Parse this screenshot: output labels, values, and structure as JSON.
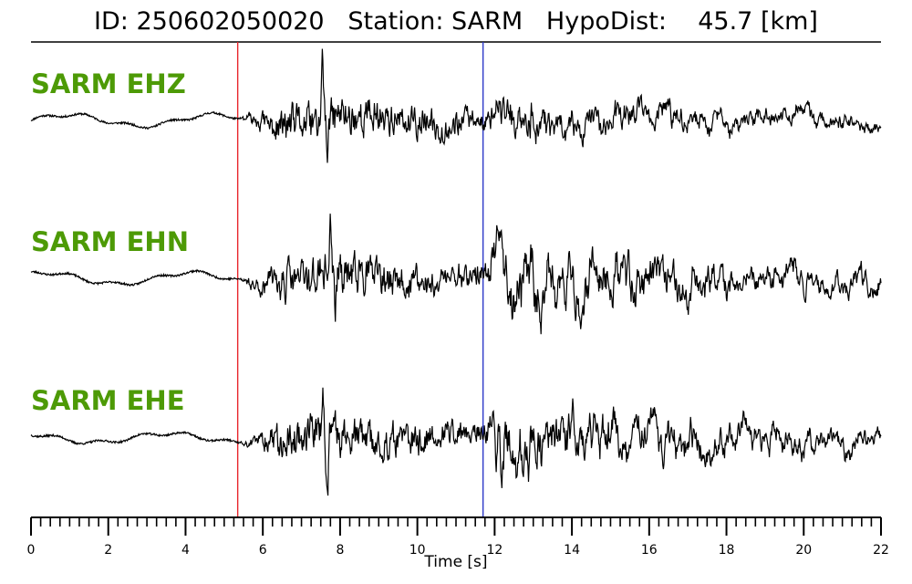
{
  "header": {
    "id_text": "ID: 250602050020   Station: SARM   HypoDist:    45.7 [km]"
  },
  "chart_data": {
    "type": "line",
    "title": "ID: 250602050020   Station: SARM   HypoDist:    45.7 [km]",
    "xlabel": "Time [s]",
    "xlim": [
      0,
      22
    ],
    "x_ticks": [
      0,
      2,
      4,
      6,
      8,
      10,
      12,
      14,
      16,
      18,
      20,
      22
    ],
    "minor_tick_step": 0.25,
    "grid": false,
    "markers": [
      {
        "time": 5.35,
        "color": "#e8262b"
      },
      {
        "time": 11.7,
        "color": "#2c38c8"
      }
    ],
    "trace_color": "#000000",
    "label_color": "#4d9a06",
    "series": [
      {
        "name": "SARM EHZ",
        "seed": 11,
        "noise_amp": 0.1,
        "low_amp": 0.15,
        "s_amp": 0.55,
        "peak_time": 7.55,
        "peak_up": 1.75,
        "peak_down": -0.9
      },
      {
        "name": "SARM EHN",
        "seed": 23,
        "noise_amp": 0.1,
        "low_amp": 0.15,
        "s_amp": 1.0,
        "peak_time": 7.75,
        "peak_up": 1.35,
        "peak_down": -1.0
      },
      {
        "name": "SARM EHE",
        "seed": 37,
        "noise_amp": 0.1,
        "low_amp": 0.12,
        "s_amp": 0.95,
        "peak_time": 7.55,
        "peak_up": 1.3,
        "peak_down": -1.6
      }
    ]
  }
}
